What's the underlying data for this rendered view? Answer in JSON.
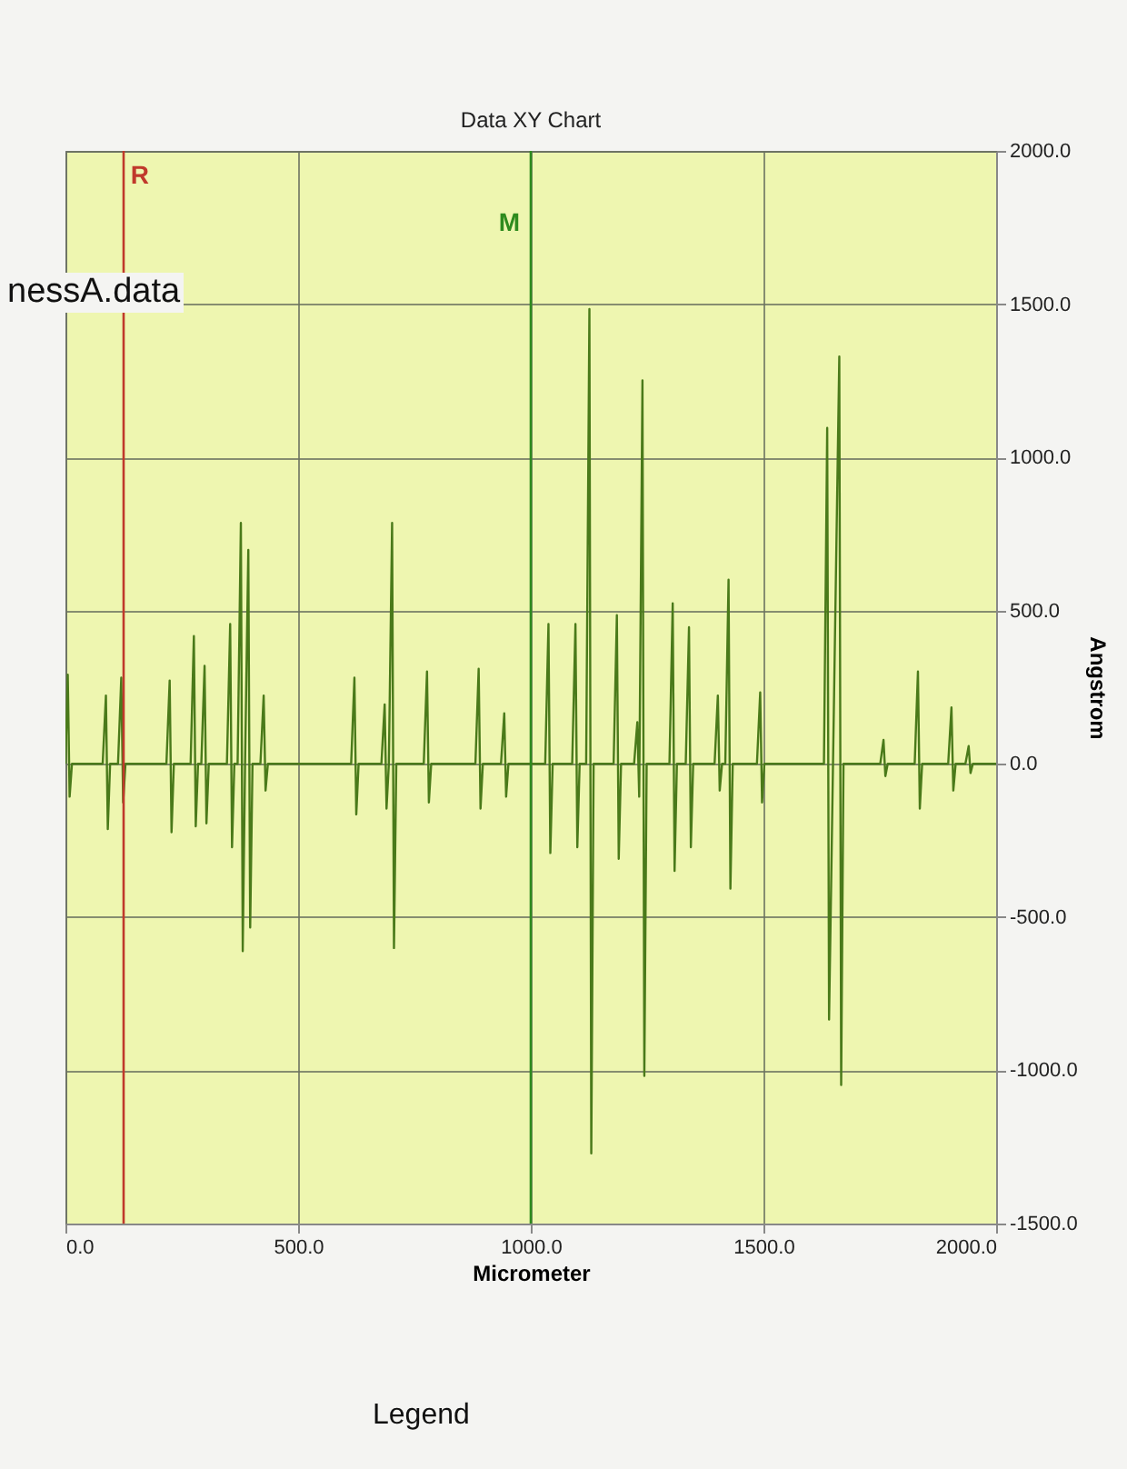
{
  "chart_data": {
    "type": "line",
    "title": "Data XY Chart",
    "xlabel": "Micrometer",
    "ylabel": "Angstrom",
    "xlim": [
      0,
      2000
    ],
    "ylim": [
      -1500,
      2000
    ],
    "xticks": [
      {
        "value": 0,
        "label": "0.0"
      },
      {
        "value": 500,
        "label": "500.0"
      },
      {
        "value": 1000,
        "label": "1000.0"
      },
      {
        "value": 1500,
        "label": "1500.0"
      },
      {
        "value": 2000,
        "label": "2000.0"
      }
    ],
    "yticks": [
      {
        "value": -1500,
        "label": "-1500.0"
      },
      {
        "value": -1000,
        "label": "-1000.0"
      },
      {
        "value": -500,
        "label": "-500.0"
      },
      {
        "value": 0,
        "label": "0.0"
      },
      {
        "value": 500,
        "label": "500.0"
      },
      {
        "value": 1000,
        "label": "1000.0"
      },
      {
        "value": 1500,
        "label": "1500.0"
      },
      {
        "value": 2000,
        "label": "2000.0"
      }
    ],
    "grid": true,
    "ref_lines": [
      {
        "axis": "x",
        "value": 125,
        "label": "R",
        "color": "#c0392b"
      },
      {
        "axis": "x",
        "value": 1000,
        "label": "M",
        "color": "#2e8b1e"
      }
    ],
    "annotations": [
      "nessA.data",
      "Legend"
    ],
    "x": [
      0,
      5,
      9,
      14,
      80,
      87,
      91,
      96,
      113,
      120,
      124,
      129,
      217,
      224,
      228,
      233,
      269,
      276,
      280,
      285,
      292,
      299,
      303,
      308,
      347,
      354,
      358,
      363,
      370,
      377,
      381,
      386,
      393,
      397,
      402,
      419,
      426,
      430,
      435,
      614,
      621,
      625,
      630,
      679,
      686,
      690,
      695,
      702,
      706,
      711,
      770,
      777,
      781,
      786,
      881,
      888,
      892,
      897,
      936,
      943,
      947,
      952,
      1000,
      1031,
      1038,
      1042,
      1047,
      1089,
      1096,
      1100,
      1105,
      1119,
      1126,
      1130,
      1135,
      1178,
      1185,
      1189,
      1194,
      1222,
      1229,
      1233,
      1240,
      1244,
      1249,
      1298,
      1305,
      1309,
      1314,
      1333,
      1340,
      1344,
      1349,
      1395,
      1402,
      1406,
      1411,
      1418,
      1425,
      1429,
      1434,
      1486,
      1493,
      1497,
      1502,
      1630,
      1637,
      1641,
      1663,
      1667,
      1672,
      1751,
      1758,
      1762,
      1767,
      1825,
      1832,
      1836,
      1841,
      1897,
      1904,
      1908,
      1913,
      1934,
      1941,
      1945,
      1950,
      2000
    ],
    "series": [
      {
        "color": "#4a7a1a",
        "values": [
          0,
          291,
          -107,
          0,
          0,
          223,
          -213,
          0,
          0,
          281,
          -126,
          0,
          0,
          272,
          -223,
          0,
          0,
          417,
          -204,
          0,
          0,
          320,
          -194,
          0,
          0,
          456,
          -272,
          0,
          0,
          786,
          -611,
          0,
          698,
          -534,
          0,
          0,
          223,
          -87,
          0,
          0,
          281,
          -165,
          0,
          0,
          194,
          -146,
          0,
          786,
          -601,
          0,
          0,
          301,
          -126,
          0,
          0,
          310,
          -146,
          0,
          0,
          165,
          -107,
          0,
          0,
          0,
          456,
          -291,
          0,
          0,
          456,
          -272,
          0,
          0,
          1484,
          -1271,
          0,
          0,
          485,
          -310,
          0,
          0,
          136,
          -107,
          1251,
          -1018,
          0,
          0,
          524,
          -349,
          0,
          0,
          446,
          -272,
          0,
          0,
          223,
          -87,
          0,
          0,
          601,
          -407,
          0,
          0,
          233,
          -126,
          0,
          0,
          1096,
          -834,
          1329,
          -1048,
          0,
          0,
          78,
          -40,
          0,
          0,
          301,
          -146,
          0,
          0,
          184,
          -87,
          0,
          0,
          58,
          -30,
          0,
          0
        ]
      }
    ]
  }
}
